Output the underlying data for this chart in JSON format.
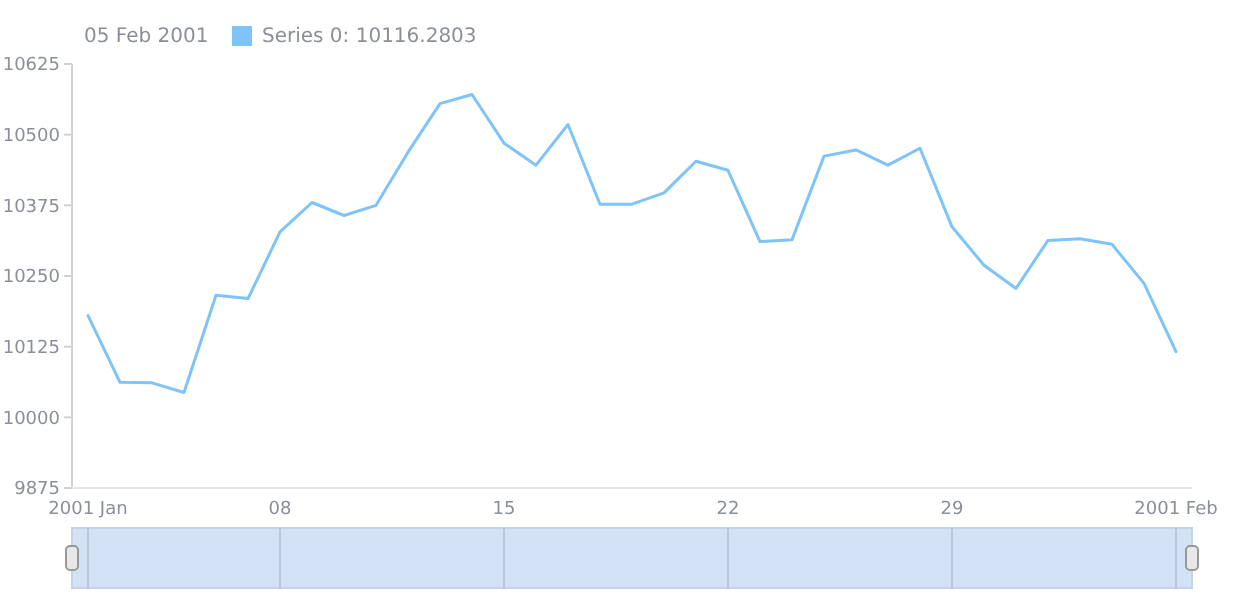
{
  "chart_data": {
    "type": "line",
    "legend_title": "05 Feb 2001",
    "legend": "top left",
    "grid": false,
    "marker": "none",
    "line_style": "solid",
    "x": [
      "2001-01-02",
      "2001-01-03",
      "2001-01-04",
      "2001-01-05",
      "2001-01-06",
      "2001-01-07",
      "2001-01-08",
      "2001-01-09",
      "2001-01-10",
      "2001-01-11",
      "2001-01-12",
      "2001-01-13",
      "2001-01-14",
      "2001-01-15",
      "2001-01-16",
      "2001-01-17",
      "2001-01-18",
      "2001-01-19",
      "2001-01-20",
      "2001-01-21",
      "2001-01-22",
      "2001-01-23",
      "2001-01-24",
      "2001-01-25",
      "2001-01-26",
      "2001-01-27",
      "2001-01-28",
      "2001-01-29",
      "2001-01-30",
      "2001-01-31",
      "2001-02-01",
      "2001-02-02",
      "2001-02-03",
      "2001-02-04",
      "2001-02-05"
    ],
    "series": [
      {
        "name": "Series 0: 10116.2803",
        "color": "#7fc4f8",
        "values": [
          10180,
          10062,
          10061,
          10044,
          10216,
          10210,
          10328,
          10380,
          10357,
          10375,
          10469,
          10555,
          10571,
          10485,
          10446,
          10518,
          10377,
          10377,
          10397,
          10453,
          10437,
          10311,
          10314,
          10462,
          10473,
          10446,
          10476,
          10337,
          10269,
          10228,
          10313,
          10316,
          10306,
          10237,
          10116.2803
        ]
      }
    ],
    "xlim": [
      "2001-01-01T12:00",
      "2001-02-05T12:00"
    ],
    "xticks": [
      {
        "value": "2001-01-02",
        "label": "2001 Jan"
      },
      {
        "value": "2001-01-08",
        "label": "08"
      },
      {
        "value": "2001-01-15",
        "label": "15"
      },
      {
        "value": "2001-01-22",
        "label": "22"
      },
      {
        "value": "2001-01-29",
        "label": "29"
      },
      {
        "value": "2001-02-05",
        "label": "2001 Feb"
      }
    ],
    "ylim": [
      9875,
      10625
    ],
    "yticks": [
      9875,
      10000,
      10125,
      10250,
      10375,
      10500,
      10625
    ]
  }
}
